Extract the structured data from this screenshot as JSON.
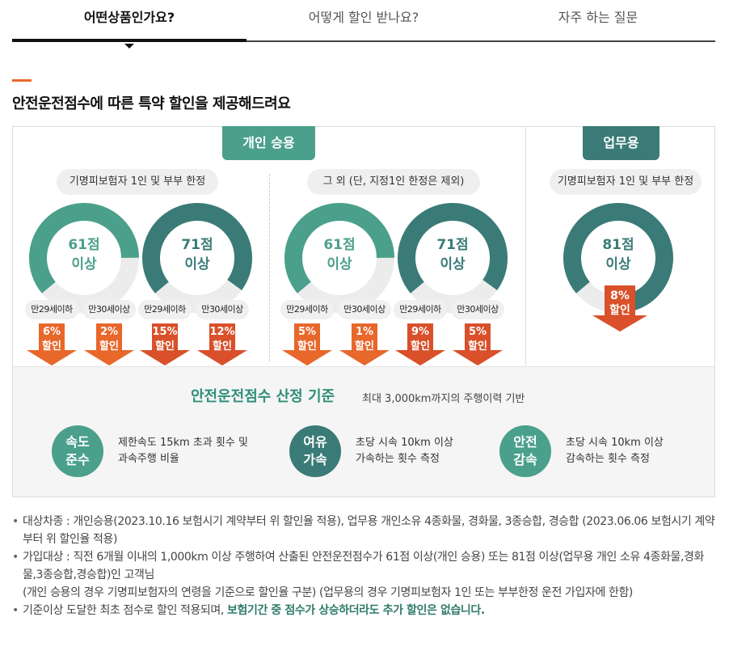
{
  "tabs": [
    {
      "label": "어떤상품인가요?",
      "active": true
    },
    {
      "label": "어떻게 할인 받나요?",
      "active": false
    },
    {
      "label": "자주 하는 질문",
      "active": false
    }
  ],
  "headline": "안전운전점수에 따른 특약 할인을 제공해드려요",
  "personal": {
    "label": "개인 승용",
    "groups": [
      {
        "title": "기명피보험자 1인 및 부부 한정",
        "tiers": [
          {
            "score": "61점",
            "score_suffix": "이상",
            "gauge_fraction": 0.61,
            "ages": [
              {
                "label": "만29세이하",
                "discount": "6%",
                "discount_suffix": "할인"
              },
              {
                "label": "만30세이상",
                "discount": "2%",
                "discount_suffix": "할인"
              }
            ]
          },
          {
            "score": "71점",
            "score_suffix": "이상",
            "gauge_fraction": 0.71,
            "ages": [
              {
                "label": "만29세이하",
                "discount": "15%",
                "discount_suffix": "할인"
              },
              {
                "label": "만30세이상",
                "discount": "12%",
                "discount_suffix": "할인"
              }
            ]
          }
        ]
      },
      {
        "title": "그 외 (단, 지정1인 한정은 제외)",
        "tiers": [
          {
            "score": "61점",
            "score_suffix": "이상",
            "gauge_fraction": 0.61,
            "ages": [
              {
                "label": "만29세이하",
                "discount": "5%",
                "discount_suffix": "할인"
              },
              {
                "label": "만30세이상",
                "discount": "1%",
                "discount_suffix": "할인"
              }
            ]
          },
          {
            "score": "71점",
            "score_suffix": "이상",
            "gauge_fraction": 0.71,
            "ages": [
              {
                "label": "만29세이하",
                "discount": "9%",
                "discount_suffix": "할인"
              },
              {
                "label": "만30세이상",
                "discount": "5%",
                "discount_suffix": "할인"
              }
            ]
          }
        ]
      }
    ]
  },
  "business": {
    "label": "업무용",
    "title": "기명피보험자 1인 및 부부 한정",
    "score": "81점",
    "score_suffix": "이상",
    "gauge_fraction": 0.81,
    "discount": "8%",
    "discount_suffix": "할인"
  },
  "criteria": {
    "title": "안전운전점수 산정 기준",
    "subtitle": "최대 3,000km까지의 주행이력 기반",
    "items": [
      {
        "circle_line1": "속도",
        "circle_line2": "준수",
        "desc_line1": "제한속도 15km 초과 횟수 및",
        "desc_line2": "과속주행 비율"
      },
      {
        "circle_line1": "여유",
        "circle_line2": "가속",
        "desc_line1": "초당 시속 10km 이상",
        "desc_line2": "가속하는 횟수 측정"
      },
      {
        "circle_line1": "안전",
        "circle_line2": "감속",
        "desc_line1": "초당 시속 10km 이상",
        "desc_line2": "감속하는 횟수 측정"
      }
    ]
  },
  "notes": [
    {
      "text": "대상차종 : 개인승용(2023.10.16 보험시기 계약부터 위 할인율 적용), 업무용 개인소유 4종화물, 경화물, 3종승합, 경승합 (2023.06.06 보험시기 계약부터 위 할인율 적용)"
    },
    {
      "text": "가입대상 : 직전 6개월 이내의 1,000km 이상 주행하여 산출된 안전운전점수가 61점 이상(개인 승용) 또는 81점 이상(업무용 개인 소유 4종화물,경화물,3종승합,경승합)인 고객님",
      "text2": "(개인 승용의 경우 기명피보험자의 연령을 기준으로 할인율 구분) (업무용의 경우 기명피보험자 1인 또는 부부한정 운전 가입자에 한함)"
    },
    {
      "text": "기준이상 도달한 최초 점수로 할인 적용되며, ",
      "highlight": "보험기간 중 점수가 상승하더라도 추가 할인은 없습니다."
    }
  ],
  "colors": {
    "green": "#4aa08b",
    "teal": "#3a7b77",
    "orange": "#e8672b",
    "red_orange": "#d9502a"
  }
}
